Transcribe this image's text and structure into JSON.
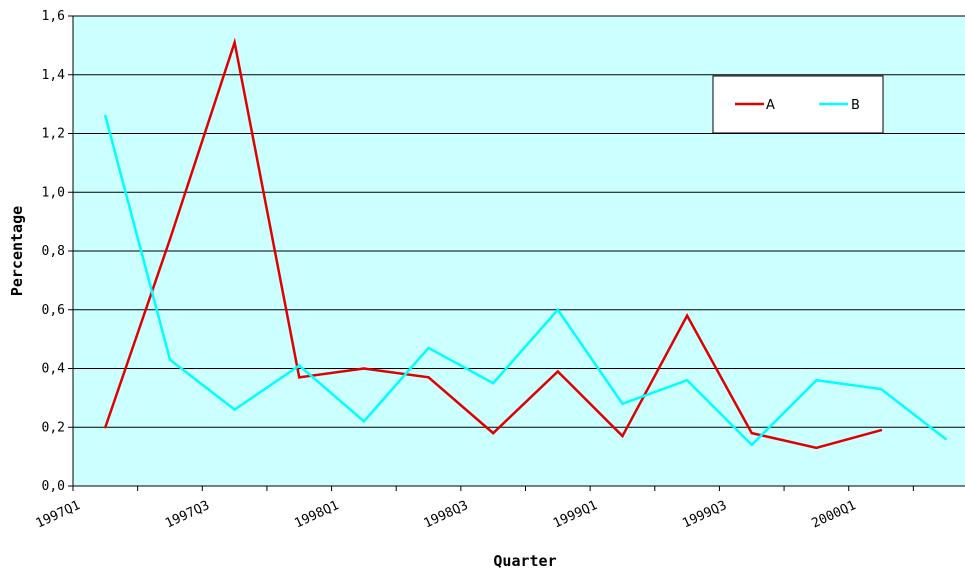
{
  "chart_data": {
    "type": "line",
    "title": "",
    "xlabel": "Quarter",
    "ylabel": "Percentage",
    "ylim": [
      0,
      1.6
    ],
    "yticks": [
      "0,0",
      "0,2",
      "0,4",
      "0,6",
      "0,8",
      "1,0",
      "1,2",
      "1,4",
      "1,6"
    ],
    "categories": [
      "1997Q1",
      "1997Q2",
      "1997Q3",
      "1997Q4",
      "1998Q1",
      "1998Q2",
      "1998Q3",
      "1998Q4",
      "1999Q1",
      "1999Q2",
      "1999Q3",
      "1999Q4",
      "2000Q1",
      "2000Q2"
    ],
    "xtick_labels": [
      "1997Q1",
      "1997Q3",
      "1998Q1",
      "1998Q3",
      "1999Q1",
      "1999Q3",
      "2000Q1"
    ],
    "grid": "horizontal",
    "legend_position": "top-right",
    "background": "#ccffff",
    "series": [
      {
        "name": "A",
        "color": "#e00000",
        "values": [
          0.2,
          0.84,
          1.51,
          0.37,
          0.4,
          0.37,
          0.18,
          0.39,
          0.17,
          0.58,
          0.18,
          0.13,
          0.19,
          null
        ]
      },
      {
        "name": "B",
        "color": "#00ffff",
        "values": [
          1.26,
          0.43,
          0.26,
          0.41,
          0.22,
          0.47,
          0.35,
          0.6,
          0.28,
          0.36,
          0.14,
          0.36,
          0.33,
          0.16
        ]
      }
    ]
  }
}
